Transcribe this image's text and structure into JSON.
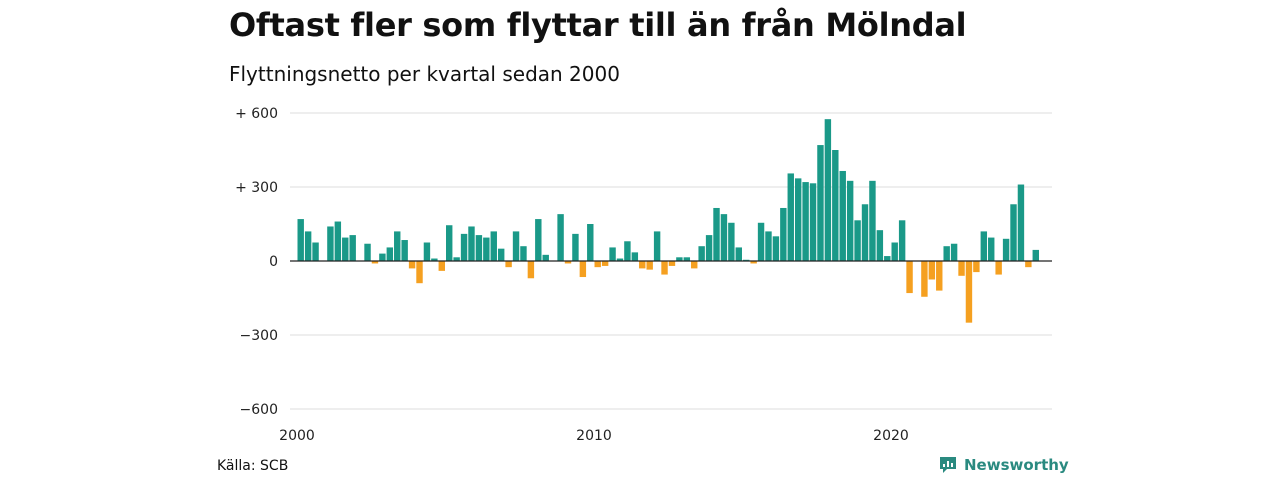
{
  "title": "Oftast fler som flyttar till än från Mölndal",
  "subtitle": "Flyttningsnetto per kvartal sedan 2000",
  "source": "Källa: SCB",
  "brand": "Newsworthy",
  "colors": {
    "positive": "#1a9988",
    "negative": "#f5a020",
    "grid": "#dddddd",
    "axis": "#222222"
  },
  "chart_data": {
    "type": "bar",
    "ylim": [
      -600,
      600
    ],
    "yticks": [
      600,
      300,
      0,
      -300,
      -600
    ],
    "ytick_labels": [
      "+ 600",
      "+ 300",
      "0",
      "−300",
      "−600"
    ],
    "xtick_labels": [
      "2000",
      "2010",
      "2020"
    ],
    "xtick_years": [
      2000,
      2010,
      2020
    ],
    "start_year": 2000,
    "grid": true,
    "values": [
      170,
      120,
      75,
      0,
      140,
      160,
      95,
      105,
      0,
      70,
      -10,
      30,
      55,
      120,
      85,
      -30,
      -90,
      75,
      10,
      -40,
      145,
      15,
      110,
      140,
      105,
      95,
      120,
      50,
      -25,
      120,
      60,
      -70,
      170,
      25,
      0,
      190,
      -10,
      110,
      -65,
      150,
      -25,
      -20,
      55,
      10,
      80,
      35,
      -30,
      -35,
      120,
      -55,
      -20,
      15,
      15,
      -30,
      60,
      105,
      215,
      190,
      155,
      55,
      5,
      -10,
      155,
      120,
      100,
      215,
      355,
      335,
      320,
      315,
      470,
      575,
      450,
      365,
      325,
      165,
      230,
      325,
      125,
      20,
      75,
      165,
      -130,
      0,
      -145,
      -75,
      -120,
      60,
      70,
      -60,
      -250,
      -45,
      120,
      95,
      -55,
      90,
      230,
      310,
      -25,
      45
    ]
  }
}
